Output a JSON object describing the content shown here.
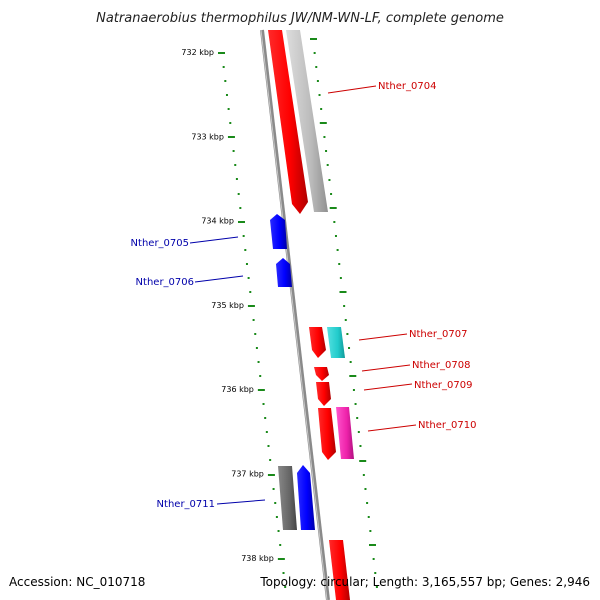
{
  "title": "Natranaerobius thermophilus JW/NM-WN-LF, complete genome",
  "footer": {
    "accession": "Accession: NC_010718",
    "topology": "Topology: circular; Length: 3,165,557 bp; Genes: 2,946"
  },
  "scale_ticks": [
    "732 kbp",
    "733 kbp",
    "734 kbp",
    "735 kbp",
    "736 kbp",
    "737 kbp",
    "738 kbp"
  ],
  "genes": [
    {
      "label": "Nther_0704",
      "color": "#cc0000"
    },
    {
      "label": "Nther_0705",
      "color": "#0000aa"
    },
    {
      "label": "Nther_0706",
      "color": "#0000aa"
    },
    {
      "label": "Nther_0707",
      "color": "#cc0000"
    },
    {
      "label": "Nther_0708",
      "color": "#cc0000"
    },
    {
      "label": "Nther_0709",
      "color": "#cc0000"
    },
    {
      "label": "Nther_0710",
      "color": "#cc0000"
    },
    {
      "label": "Nther_0711",
      "color": "#0000aa"
    }
  ],
  "colors": {
    "forward_gene": "#ff0000",
    "reverse_gene": "#0000ff",
    "cyan_gene": "#22cccc",
    "magenta_gene": "#ee22aa",
    "grey_gene": "#bbbbbb",
    "dark_grey_gene": "#666666",
    "scale_dash": "#1a8a1a",
    "axis": "#888888"
  }
}
